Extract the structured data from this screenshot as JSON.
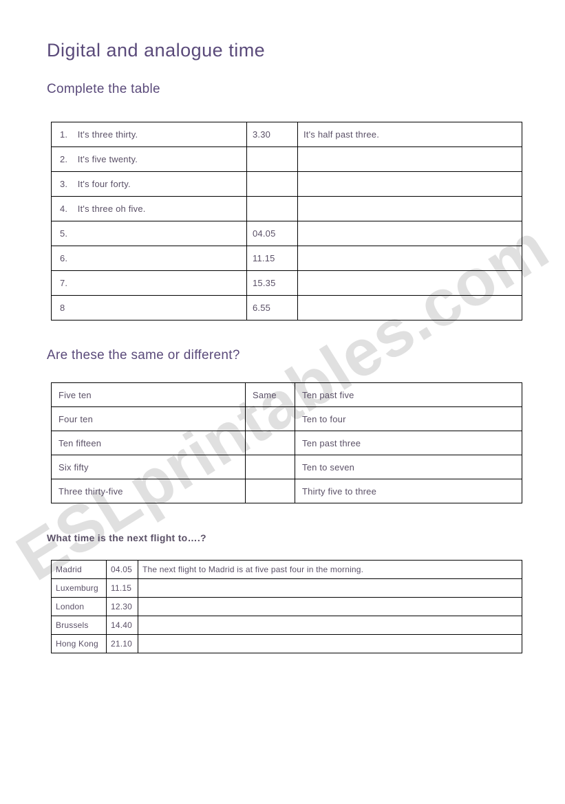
{
  "colors": {
    "heading": "#5a4a7a",
    "body": "#5a5066",
    "border": "#000000",
    "background": "#ffffff"
  },
  "title": "Digital and analogue time",
  "section1": {
    "heading": "Complete the table",
    "rows": [
      {
        "num": "1.",
        "text": "It's three thirty.",
        "digital": "3.30",
        "analogue": "It's half past three."
      },
      {
        "num": "2.",
        "text": "It's five twenty.",
        "digital": "",
        "analogue": ""
      },
      {
        "num": "3.",
        "text": "It's four forty.",
        "digital": "",
        "analogue": ""
      },
      {
        "num": "4.",
        "text": "It's three oh five.",
        "digital": "",
        "analogue": ""
      },
      {
        "num": "5.",
        "text": "",
        "digital": "04.05",
        "analogue": ""
      },
      {
        "num": "6.",
        "text": "",
        "digital": "11.15",
        "analogue": ""
      },
      {
        "num": "7.",
        "text": "",
        "digital": "15.35",
        "analogue": ""
      },
      {
        "num": "8",
        "text": "",
        "digital": "6.55",
        "analogue": ""
      }
    ]
  },
  "section2": {
    "heading": "Are these the same or different?",
    "rows": [
      {
        "left": "Five ten",
        "mid": "Same",
        "right": "Ten past five"
      },
      {
        "left": "Four ten",
        "mid": "",
        "right": "Ten to four"
      },
      {
        "left": "Ten fifteen",
        "mid": "",
        "right": "Ten past three"
      },
      {
        "left": "Six fifty",
        "mid": "",
        "right": "Ten to seven"
      },
      {
        "left": "Three thirty-five",
        "mid": "",
        "right": "Thirty five to three"
      }
    ]
  },
  "section3": {
    "heading": "What time  is the next flight to….?",
    "rows": [
      {
        "city": "Madrid",
        "time": "04.05",
        "sentence": "The next flight to Madrid is at five past four in the morning."
      },
      {
        "city": "Luxemburg",
        "time": "11.15",
        "sentence": ""
      },
      {
        "city": "London",
        "time": "12.30",
        "sentence": ""
      },
      {
        "city": "Brussels",
        "time": "14.40",
        "sentence": ""
      },
      {
        "city": "Hong Kong",
        "time": "21.10",
        "sentence": ""
      }
    ]
  },
  "watermark": "ESLprintables.com"
}
